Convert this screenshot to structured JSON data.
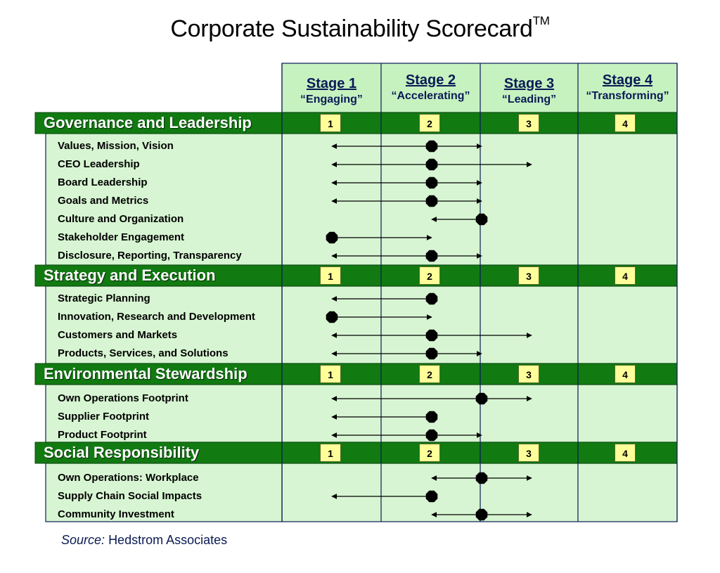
{
  "title": "Corporate Sustainability Scorecard",
  "title_mark": "TM",
  "stages": [
    {
      "label": "Stage 1",
      "name": "“Engaging”"
    },
    {
      "label": "Stage 2",
      "name": "“Accelerating”"
    },
    {
      "label": "Stage 3",
      "name": "“Leading”"
    },
    {
      "label": "Stage 4",
      "name": "“Transforming”"
    }
  ],
  "stage_numbers": [
    "1",
    "2",
    "3",
    "4"
  ],
  "sections": [
    {
      "title": "Governance and Leadership",
      "rows": [
        {
          "label": "Values, Mission, Vision",
          "current": 2.0,
          "range": [
            1.0,
            2.5
          ]
        },
        {
          "label": "CEO Leadership",
          "current": 2.0,
          "range": [
            1.0,
            3.0
          ]
        },
        {
          "label": "Board Leadership",
          "current": 2.0,
          "range": [
            1.0,
            2.5
          ]
        },
        {
          "label": "Goals and Metrics",
          "current": 2.0,
          "range": [
            1.0,
            2.5
          ]
        },
        {
          "label": "Culture and Organization",
          "current": 2.5,
          "range": [
            2.0,
            2.5
          ]
        },
        {
          "label": "Stakeholder Engagement",
          "current": 1.0,
          "range": [
            1.0,
            2.0
          ]
        },
        {
          "label": "Disclosure, Reporting, Transparency",
          "current": 2.0,
          "range": [
            1.0,
            2.5
          ]
        }
      ]
    },
    {
      "title": "Strategy and Execution",
      "rows": [
        {
          "label": "Strategic Planning",
          "current": 2.0,
          "range": [
            1.0,
            2.0
          ]
        },
        {
          "label": "Innovation, Research and Development",
          "current": 1.0,
          "range": [
            1.0,
            2.0
          ]
        },
        {
          "label": "Customers and Markets",
          "current": 2.0,
          "range": [
            1.0,
            3.0
          ]
        },
        {
          "label": "Products, Services, and Solutions",
          "current": 2.0,
          "range": [
            1.0,
            2.5
          ]
        }
      ]
    },
    {
      "title": "Environmental Stewardship",
      "rows": [
        {
          "label": "Own Operations Footprint",
          "current": 2.5,
          "range": [
            1.0,
            3.0
          ]
        },
        {
          "label": "Supplier Footprint",
          "current": 2.0,
          "range": [
            1.0,
            2.0
          ]
        },
        {
          "label": "Product Footprint",
          "current": 2.0,
          "range": [
            1.0,
            2.5
          ]
        }
      ]
    },
    {
      "title": "Social Responsibility",
      "rows": [
        {
          "label": "Own Operations: Workplace",
          "current": 2.5,
          "range": [
            2.0,
            3.0
          ]
        },
        {
          "label": "Supply Chain Social Impacts",
          "current": 2.0,
          "range": [
            1.0,
            2.0
          ]
        },
        {
          "label": "Community Investment",
          "current": 2.5,
          "range": [
            2.0,
            3.0
          ]
        }
      ]
    }
  ],
  "source_prefix": "Source:",
  "source_name": "Hedstrom Associates",
  "colors": {
    "dark_green": "#117a11",
    "light_green": "#d7f5d2",
    "header_green": "#c6f2c0",
    "number_box": "#ffff99",
    "navy": "#0a1a55"
  }
}
